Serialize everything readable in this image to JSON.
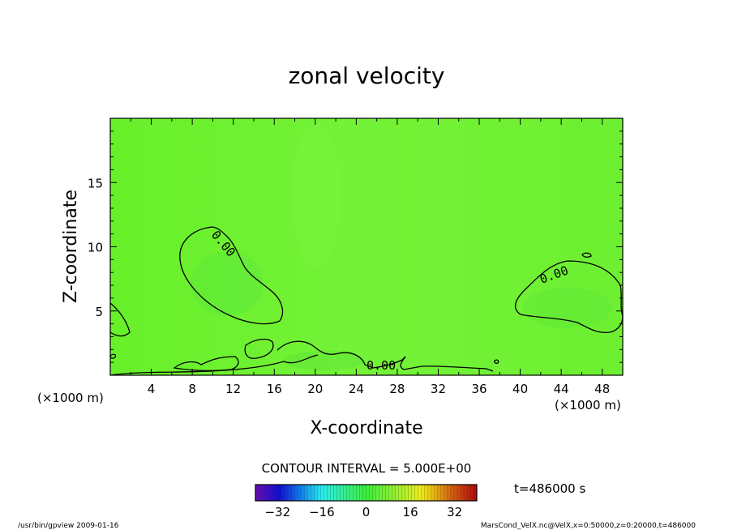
{
  "chart_data": {
    "type": "heatmap",
    "title": "zonal velocity",
    "xlabel": "X-coordinate",
    "ylabel": "Z-coordinate",
    "x_unit": "(×1000 m)",
    "z_unit": "(×1000 m)",
    "xlim": [
      0,
      50
    ],
    "ylim": [
      0,
      20
    ],
    "x_ticks": [
      4,
      8,
      12,
      16,
      20,
      24,
      28,
      32,
      36,
      40,
      44,
      48
    ],
    "y_ticks": [
      5,
      10,
      15
    ],
    "contour_interval_text": "CONTOUR INTERVAL = 5.000E+00",
    "contour_labels": [
      {
        "text": "0.00",
        "x": 11,
        "y": 10.5
      },
      {
        "text": "0.00",
        "x": 27,
        "y": 0.8
      },
      {
        "text": "0.00",
        "x": 43,
        "y": 7.6
      }
    ],
    "time_label": "t=486000 s",
    "colorbar": {
      "min": -40,
      "max": 40,
      "ticks": [
        "−32",
        "−16",
        "0",
        "16",
        "32"
      ],
      "tick_values": [
        -32,
        -16,
        0,
        16,
        32
      ]
    },
    "field_summary": "near-zero zonal velocity everywhere (green), small negative pockets inside 0.00 contours"
  },
  "footer": {
    "left": "/usr/bin/gpview   2009-01-16",
    "right": "MarsCond_VelX.nc@VelX,x=0:50000,z=0:20000,t=486000"
  }
}
